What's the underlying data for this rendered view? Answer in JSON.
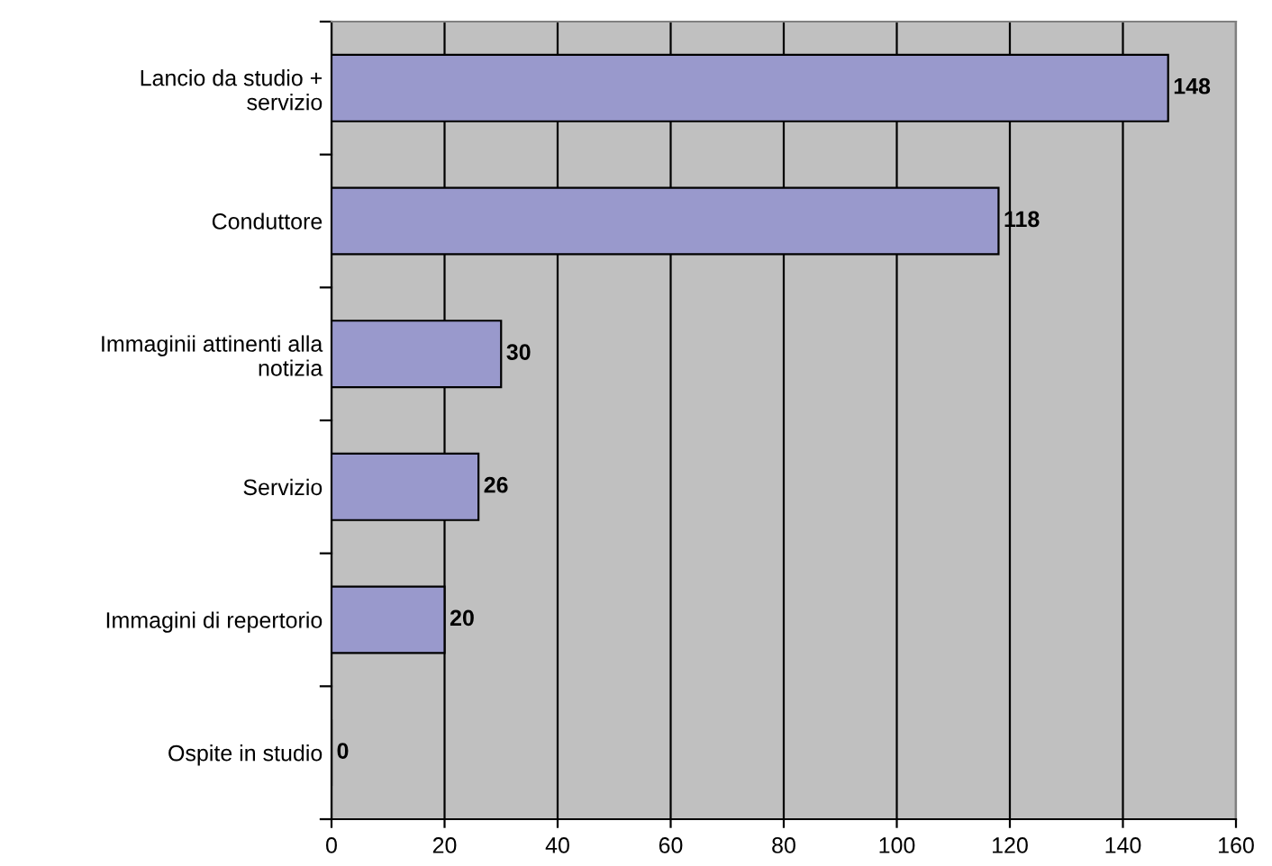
{
  "chart_data": {
    "type": "bar",
    "orientation": "horizontal",
    "categories": [
      "Lancio da studio +\nservizio",
      "Conduttore",
      "Immaginii attinenti alla\nnotizia",
      "Servizio",
      "Immagini di repertorio",
      "Ospite in studio"
    ],
    "values": [
      148,
      118,
      30,
      26,
      20,
      0
    ],
    "color": "#9999cc",
    "xlim": [
      0,
      160
    ],
    "xticks": [
      0,
      20,
      40,
      60,
      80,
      100,
      120,
      140,
      160
    ],
    "grid": "x",
    "data_labels": true
  }
}
